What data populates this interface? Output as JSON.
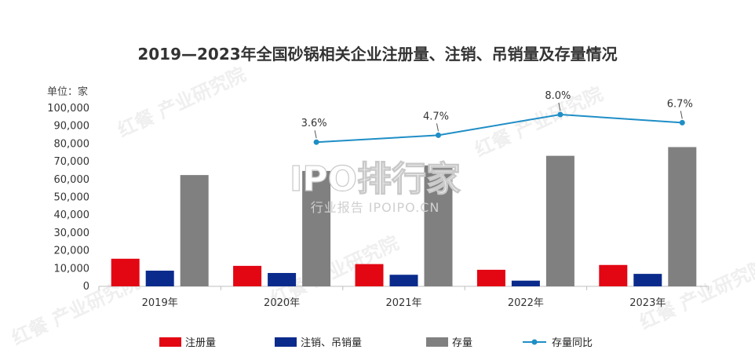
{
  "colors": {
    "registered": "#e30613",
    "cancelled": "#0a2b8c",
    "stock": "#808080",
    "yoy_line": "#1f8ec6",
    "axis": "#bfbfbf"
  },
  "watermarks": {
    "center_logo": "IPO排行家",
    "center_sub": "行业报告 IPOIPO.CN",
    "tile": "红餐 产业研究院"
  },
  "chart_data": {
    "type": "bar",
    "title": "2019—2023年全国砂锅相关企业注册量、注销、吊销量及存量情况",
    "unit_label": "单位：家",
    "categories": [
      "2019年",
      "2020年",
      "2021年",
      "2022年",
      "2023年"
    ],
    "ylim": [
      0,
      100000
    ],
    "yticks": [
      "0",
      "10,000",
      "20,000",
      "30,000",
      "40,000",
      "50,000",
      "60,000",
      "70,000",
      "80,000",
      "90,000",
      "100,000"
    ],
    "series": [
      {
        "name": "注册量",
        "values": [
          15500,
          11500,
          12500,
          9300,
          12000
        ]
      },
      {
        "name": "注销、吊销量",
        "values": [
          8800,
          7500,
          6500,
          3200,
          7000
        ]
      },
      {
        "name": "存量",
        "values": [
          62500,
          64800,
          67900,
          73300,
          78200
        ]
      }
    ],
    "line_series": {
      "name": "存量同比",
      "categories": [
        "2020年",
        "2021年",
        "2022年",
        "2023年"
      ],
      "values": [
        3.6,
        4.7,
        8.0,
        6.7
      ],
      "labels": [
        "3.6%",
        "4.7%",
        "8.0%",
        "6.7%"
      ]
    },
    "legend": [
      "注册量",
      "注销、吊销量",
      "存量",
      "存量同比"
    ],
    "legend_position": "bottom",
    "grid": false
  }
}
